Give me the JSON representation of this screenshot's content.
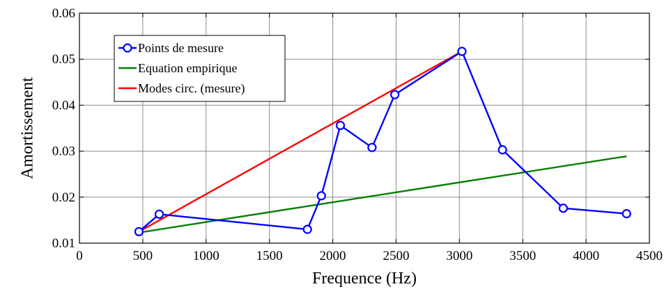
{
  "chart_data": {
    "type": "line",
    "xlabel": "Frequence (Hz)",
    "ylabel": "Amortissement",
    "xlim": [
      0,
      4500
    ],
    "ylim": [
      0.01,
      0.06
    ],
    "xticks": [
      0,
      500,
      1000,
      1500,
      2000,
      2500,
      3000,
      3500,
      4000,
      4500
    ],
    "yticks": [
      0.01,
      0.02,
      0.03,
      0.04,
      0.05,
      0.06
    ],
    "xtick_labels": [
      "0",
      "500",
      "1000",
      "1500",
      "2000",
      "2500",
      "3000",
      "3500",
      "4000",
      "4500"
    ],
    "ytick_labels": [
      "0.01",
      "0.02",
      "0.03",
      "0.04",
      "0.05",
      "0.06"
    ],
    "grid": true,
    "legend_position": "top-left",
    "series": [
      {
        "name": "Points de mesure",
        "color": "#0000ff",
        "marker": "circle",
        "x": [
          470,
          630,
          1800,
          1910,
          2060,
          2310,
          2490,
          3020,
          3340,
          3820,
          4320
        ],
        "y": [
          0.0125,
          0.0163,
          0.013,
          0.0203,
          0.0356,
          0.0308,
          0.0423,
          0.0517,
          0.0303,
          0.0176,
          0.0164
        ]
      },
      {
        "name": "Equation empirique",
        "color": "#008000",
        "marker": "none",
        "x": [
          470,
          4320
        ],
        "y": [
          0.0123,
          0.0289
        ]
      },
      {
        "name": "Modes circ. (mesure)",
        "color": "#ff0000",
        "marker": "none",
        "x": [
          470,
          3020
        ],
        "y": [
          0.0125,
          0.0517
        ]
      }
    ]
  }
}
